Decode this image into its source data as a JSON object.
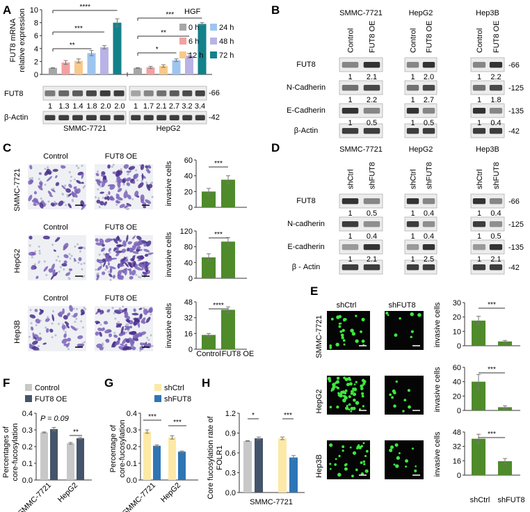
{
  "panels": {
    "A": "A",
    "B": "B",
    "C": "C",
    "D": "D",
    "E": "E",
    "F": "F",
    "G": "G",
    "H": "H"
  },
  "colors": {
    "h0": "#a6a6a6",
    "h6": "#f4a0a0",
    "h12": "#f8c98a",
    "h24": "#9ec5ef",
    "h48": "#b8b2e6",
    "h72": "#13818a",
    "green": "#4f8a2b",
    "control": "#c8c8c8",
    "oe": "#44546a",
    "shctrl": "#fde9a6",
    "shfut8": "#2e75b6",
    "band": "#222",
    "blot_bg": "#e9e9e9",
    "cell_purple": "#6b4ea8",
    "cell_green": "#33dd33"
  },
  "panelA": {
    "ylabel1": "FUT8 mRNA",
    "ylabel2": "relative expression",
    "legend_title": "HGF",
    "legend": [
      "0 h",
      "24 h",
      "6 h",
      "48 h",
      "12 h",
      "72 h"
    ],
    "sig_smmc": [
      "****",
      "***",
      "**"
    ],
    "sig_hepg2": [
      "***",
      "**",
      "*"
    ],
    "blot1": "FUT8",
    "blot2": "β-Actin",
    "mw1": "-66",
    "mw2": "-42",
    "smmc_ratios": [
      "1",
      "1.3",
      "1.4",
      "1.8",
      "2.0",
      "2.0"
    ],
    "hepg2_ratios": [
      "1",
      "1.7",
      "2.1",
      "2.7",
      "3.2",
      "3.4"
    ],
    "cell1": "SMMC-7721",
    "cell2": "HepG2"
  },
  "panelB": {
    "cells": [
      "SMMC-7721",
      "HepG2",
      "Hep3B"
    ],
    "cols": [
      "Control",
      "FUT8 OE"
    ],
    "rows": [
      "FUT8",
      "N-Cadherin",
      "E-Cadherin",
      "β-Actin"
    ],
    "mw": [
      "-66",
      "-125",
      "-135",
      "-42"
    ],
    "ratios": [
      [
        "1",
        "2.1",
        "1",
        "2.0",
        "1",
        "2.2"
      ],
      [
        "1",
        "2.2",
        "1",
        "2.7",
        "1",
        "1.8"
      ],
      [
        "1",
        "0.5",
        "1",
        "0.5",
        "1",
        "0.4"
      ]
    ]
  },
  "panelC": {
    "cols": [
      "Control",
      "FUT8 OE"
    ],
    "rows": [
      "SMMC-7721",
      "HepG2",
      "Hep3B"
    ],
    "ylabel": "invasive cells",
    "sig": [
      "***",
      "***",
      "****"
    ],
    "xlabels": [
      "Control",
      "FUT8 OE"
    ]
  },
  "panelD": {
    "cells": [
      "SMMC-7721",
      "HepG2",
      "Hep3B"
    ],
    "cols": [
      "shCtrl",
      "shFUT8"
    ],
    "rows": [
      "FUT8",
      "N-cadherin",
      "E-cadherin",
      "β - Actin"
    ],
    "mw": [
      "-66",
      "-125",
      "-135",
      "-42"
    ],
    "ratios": [
      [
        "1",
        "0.5",
        "1",
        "0.4",
        "1",
        "0.4"
      ],
      [
        "1",
        "0.4",
        "1",
        "0.4",
        "1",
        "0.5"
      ],
      [
        "1",
        "2.1",
        "1",
        "2.5",
        "1",
        "2.1"
      ]
    ]
  },
  "panelE": {
    "cols": [
      "shCtrl",
      "shFUT8"
    ],
    "rows": [
      "SMMC-7721",
      "HepG2",
      "Hep3B"
    ],
    "ylabel": "invasive cells",
    "sig": [
      "***",
      "***",
      "***"
    ],
    "xlabels": [
      "shCtrl",
      "shFUT8"
    ]
  },
  "panelF": {
    "legend": [
      "Control",
      "FUT8 OE"
    ],
    "ylabel1": "Percentages of",
    "ylabel2": "core-fucosylation",
    "pval": "P = 0.09",
    "sig": "**",
    "xlabels": [
      "SMMC-7721",
      "HepG2"
    ]
  },
  "panelG": {
    "legend": [
      "shCtrl",
      "shFUT8"
    ],
    "ylabel1": "Percentage of",
    "ylabel2": "core-fucosylation",
    "sig": [
      "***",
      "***"
    ],
    "xlabels": [
      "SMMC-7721",
      "HepG2"
    ]
  },
  "panelH": {
    "ylabel1": "Core fucosylation rate of",
    "ylabel2": "FOLR1",
    "sig": [
      "*",
      "***"
    ],
    "xlabel": "SMMC-7721"
  },
  "chart_data": [
    {
      "id": "A",
      "type": "bar",
      "title": "",
      "ylabel": "FUT8 mRNA relative expression",
      "ylim": [
        0,
        10
      ],
      "yticks": [
        0,
        2,
        4,
        6,
        8,
        10
      ],
      "categories": [
        "SMMC-7721",
        "HepG2"
      ],
      "series": [
        {
          "name": "0 h",
          "values": [
            1.0,
            1.0
          ]
        },
        {
          "name": "6 h",
          "values": [
            1.85,
            1.1
          ]
        },
        {
          "name": "12 h",
          "values": [
            2.1,
            1.3
          ]
        },
        {
          "name": "24 h",
          "values": [
            3.3,
            2.2
          ]
        },
        {
          "name": "48 h",
          "values": [
            4.2,
            2.9
          ]
        },
        {
          "name": "72 h",
          "values": [
            8.0,
            7.8
          ]
        }
      ],
      "errors": [
        [
          0.05,
          0.05
        ],
        [
          0.3,
          0.15
        ],
        [
          0.3,
          0.2
        ],
        [
          0.4,
          0.2
        ],
        [
          0.25,
          0.35
        ],
        [
          0.6,
          0.2
        ]
      ]
    },
    {
      "id": "C1",
      "type": "bar",
      "ylabel": "invasive cells",
      "ylim": [
        0,
        60
      ],
      "yticks": [
        0,
        20,
        40,
        60
      ],
      "categories": [
        "Control",
        "FUT8 OE"
      ],
      "values": [
        20,
        35
      ],
      "errors": [
        4,
        5
      ]
    },
    {
      "id": "C2",
      "type": "bar",
      "ylabel": "invasive cells",
      "ylim": [
        0,
        120
      ],
      "yticks": [
        0,
        40,
        80,
        120
      ],
      "categories": [
        "Control",
        "FUT8 OE"
      ],
      "values": [
        53,
        93
      ],
      "errors": [
        9,
        10
      ]
    },
    {
      "id": "C3",
      "type": "bar",
      "ylabel": "invasive cells",
      "ylim": [
        0,
        48
      ],
      "yticks": [
        0,
        16,
        32,
        48
      ],
      "categories": [
        "Control",
        "FUT8 OE"
      ],
      "values": [
        14.5,
        40
      ],
      "errors": [
        1.5,
        3
      ]
    },
    {
      "id": "E1",
      "type": "bar",
      "ylabel": "invasive cells",
      "ylim": [
        0,
        30
      ],
      "yticks": [
        0,
        10,
        20,
        30
      ],
      "categories": [
        "shCtrl",
        "shFUT8"
      ],
      "values": [
        17.5,
        3
      ],
      "errors": [
        3,
        0.7
      ]
    },
    {
      "id": "E2",
      "type": "bar",
      "ylabel": "invasive cells",
      "ylim": [
        0,
        60
      ],
      "yticks": [
        0,
        20,
        40,
        60
      ],
      "categories": [
        "shCtrl",
        "shFUT8"
      ],
      "values": [
        40,
        4.5
      ],
      "errors": [
        10,
        2
      ]
    },
    {
      "id": "E3",
      "type": "bar",
      "ylabel": "invasive cells",
      "ylim": [
        0,
        48
      ],
      "yticks": [
        0,
        16,
        32,
        48
      ],
      "categories": [
        "shCtrl",
        "shFUT8"
      ],
      "values": [
        40.5,
        15.5
      ],
      "errors": [
        5,
        3
      ]
    },
    {
      "id": "F",
      "type": "bar",
      "ylabel": "Percentages of core-fucosylation",
      "ylim": [
        0,
        0.4
      ],
      "yticks": [
        0,
        0.1,
        0.2,
        0.3,
        0.4
      ],
      "categories": [
        "SMMC-7721",
        "HepG2"
      ],
      "series": [
        {
          "name": "Control",
          "values": [
            0.285,
            0.22
          ]
        },
        {
          "name": "FUT8 OE",
          "values": [
            0.305,
            0.25
          ]
        }
      ],
      "errors": [
        [
          0.003,
          0.005
        ],
        [
          0.01,
          0.005
        ]
      ]
    },
    {
      "id": "G",
      "type": "bar",
      "ylabel": "Percentage of core-fucosylation",
      "ylim": [
        0,
        0.4
      ],
      "yticks": [
        0,
        0.1,
        0.2,
        0.3,
        0.4
      ],
      "categories": [
        "SMMC-7721",
        "HepG2"
      ],
      "series": [
        {
          "name": "shCtrl",
          "values": [
            0.29,
            0.255
          ]
        },
        {
          "name": "shFUT8",
          "values": [
            0.205,
            0.17
          ]
        }
      ],
      "errors": [
        [
          0.01,
          0.01
        ],
        [
          0.005,
          0.004
        ]
      ]
    },
    {
      "id": "H",
      "type": "bar",
      "ylabel": "Core fucosylation rate of FOLR1",
      "ylim": [
        0,
        1.2
      ],
      "yticks": [
        0,
        0.3,
        0.6,
        0.9,
        1.2
      ],
      "categories": [
        "SMMC-7721"
      ],
      "series": [
        {
          "name": "Control",
          "values": [
            0.78
          ]
        },
        {
          "name": "FUT8 OE",
          "values": [
            0.82
          ]
        },
        {
          "name": "shCtrl",
          "values": [
            0.82
          ]
        },
        {
          "name": "shFUT8",
          "values": [
            0.53
          ]
        }
      ],
      "errors": [
        [
          0.005
        ],
        [
          0.02
        ],
        [
          0.02
        ],
        [
          0.03
        ]
      ]
    }
  ]
}
